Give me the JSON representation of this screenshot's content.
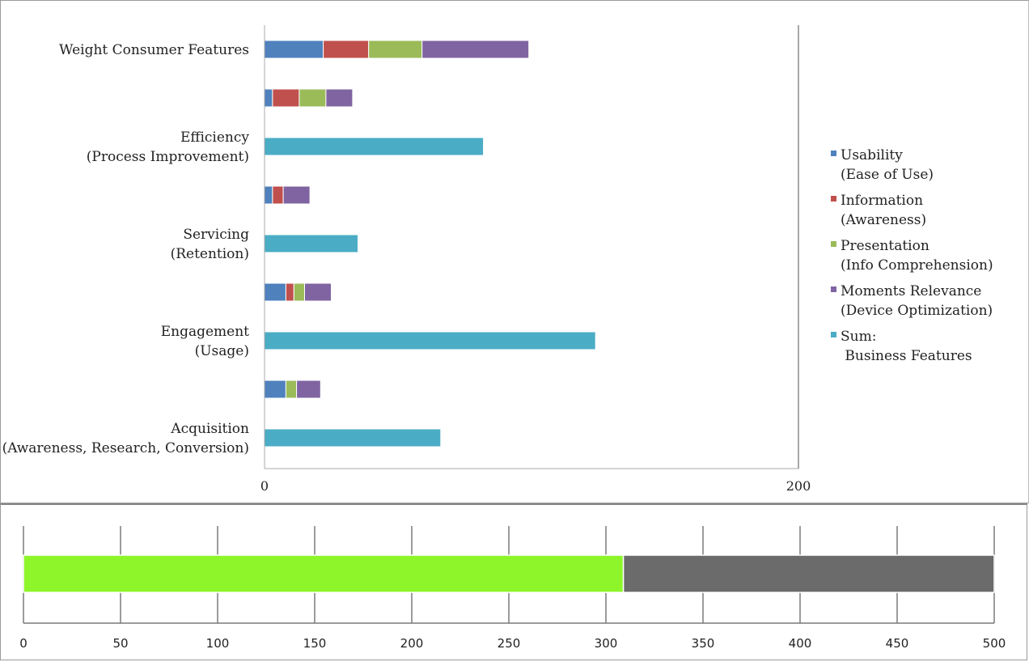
{
  "chart_data": [
    {
      "type": "bar",
      "orientation": "horizontal",
      "stacked": true,
      "title": "",
      "xlabel": "",
      "ylabel": "",
      "xlim": [
        0,
        200
      ],
      "x_ticks": [
        "0",
        "200"
      ],
      "legend_position": "right",
      "grid": false,
      "categories": [
        [
          "Weight Consumer Features"
        ],
        [],
        [
          "Efficiency",
          "(Process Improvement)"
        ],
        [],
        [
          "Servicing",
          "(Retention)"
        ],
        [],
        [
          "Engagement",
          "(Usage)"
        ],
        [],
        [
          "Acquisition",
          "(Awareness, Research, Conversion)"
        ]
      ],
      "series": [
        {
          "name": "Usability (Ease of Use)",
          "legend_lines": [
            "Usability",
            "(Ease of Use)"
          ],
          "color": "#4f81bd",
          "values": [
            22,
            3,
            0,
            3,
            0,
            8,
            0,
            8,
            0
          ]
        },
        {
          "name": "Information (Awareness)",
          "legend_lines": [
            "Information",
            "(Awareness)"
          ],
          "color": "#c0504d",
          "values": [
            17,
            10,
            0,
            4,
            0,
            3,
            0,
            0,
            0
          ]
        },
        {
          "name": "Presentation (Info Comprehension)",
          "legend_lines": [
            "Presentation",
            "(Info Comprehension)"
          ],
          "color": "#9bbb59",
          "values": [
            20,
            10,
            0,
            0,
            0,
            4,
            0,
            4,
            0
          ]
        },
        {
          "name": "Moments Relevance (Device Optimization)",
          "legend_lines": [
            "Moments Relevance",
            "(Device Optimization)"
          ],
          "color": "#8064a2",
          "values": [
            40,
            10,
            0,
            10,
            0,
            10,
            0,
            9,
            0
          ]
        },
        {
          "name": "Sum: Business Features",
          "legend_lines": [
            "Sum:",
            " Business Features"
          ],
          "color": "#4bacc6",
          "values": [
            0,
            0,
            82,
            0,
            35,
            0,
            124,
            0,
            66
          ]
        }
      ]
    },
    {
      "type": "bar",
      "orientation": "horizontal",
      "stacked": true,
      "title": "",
      "xlim": [
        0,
        500
      ],
      "x_ticks": [
        "0",
        "50",
        "100",
        "150",
        "200",
        "250",
        "300",
        "350",
        "400",
        "450",
        "500"
      ],
      "grid": true,
      "series": [
        {
          "color": "#8ef52b",
          "values": [
            309
          ]
        },
        {
          "color": "#6b6b6b",
          "values": [
            191
          ]
        }
      ]
    }
  ]
}
